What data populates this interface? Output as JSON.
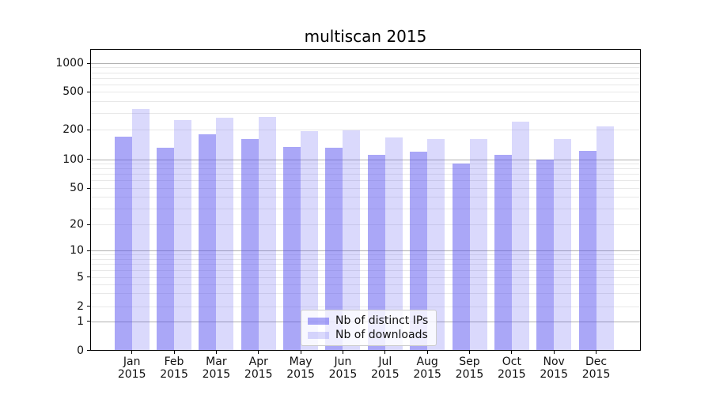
{
  "title": "multiscan 2015",
  "chart_data": {
    "type": "bar",
    "title": "multiscan 2015",
    "yscale": "symlog",
    "grid": true,
    "legend_position": "lower-center",
    "ylim": [
      0,
      1400
    ],
    "x_year": "2015",
    "categories": [
      "Jan",
      "Feb",
      "Mar",
      "Apr",
      "May",
      "Jun",
      "Jul",
      "Aug",
      "Sep",
      "Oct",
      "Nov",
      "Dec"
    ],
    "y_ticks": [
      0,
      1,
      2,
      5,
      10,
      20,
      50,
      100,
      200,
      500,
      1000
    ],
    "series": [
      {
        "name": "Nb of distinct IPs",
        "color": "rgba(85,80,240,0.5)",
        "color_hex": "#aaa7f7",
        "values": [
          170,
          130,
          177,
          159,
          133,
          131,
          110,
          118,
          89,
          110,
          99,
          120
        ]
      },
      {
        "name": "Nb of downloads",
        "color": "rgba(85,80,240,0.22)",
        "color_hex": "#dad8fb",
        "values": [
          327,
          252,
          267,
          271,
          192,
          197,
          164,
          160,
          160,
          242,
          160,
          213
        ]
      }
    ]
  }
}
